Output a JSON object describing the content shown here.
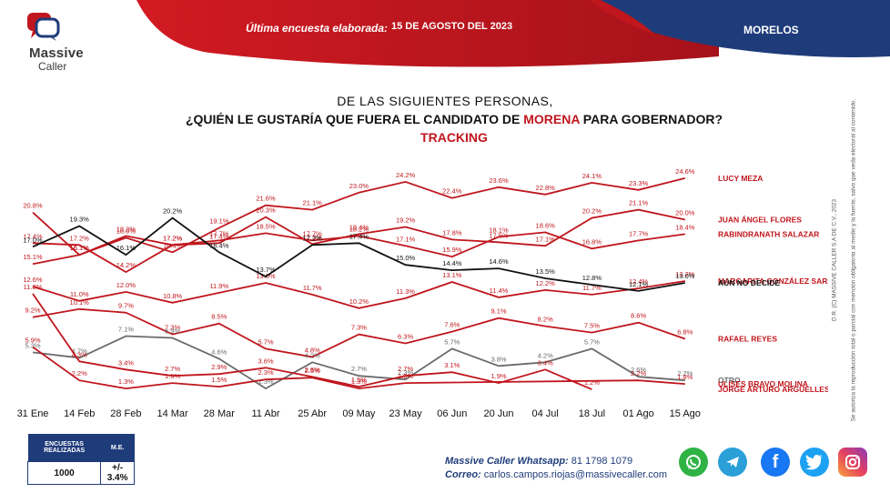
{
  "header": {
    "logo_line1": "Massive",
    "logo_line2": "Caller",
    "label": "Última encuesta elaborada:",
    "date": "15 DE AGOSTO DEL 2023",
    "region": "MORELOS"
  },
  "title": {
    "line1": "DE LAS SIGUIENTES PERSONAS,",
    "line2_a": "¿QUIÉN LE GUSTARÍA QUE FUERA EL CANDIDATO DE ",
    "line2_b": "MORENA",
    "line2_c": " PARA GOBERNADOR?",
    "line3": "TRACKING"
  },
  "colors": {
    "red": "#c0161d",
    "black": "#111111",
    "gray": "#6b6b6b",
    "navy": "#1f3c7a"
  },
  "chart_data": {
    "type": "line",
    "categories": [
      "31 Ene",
      "14 Feb",
      "28 Feb",
      "14 Mar",
      "28 Mar",
      "11 Abr",
      "25 Abr",
      "09 May",
      "23 May",
      "06 Jun",
      "20 Jun",
      "04 Jul",
      "18 Jul",
      "01 Ago",
      "15 Ago"
    ],
    "series": [
      {
        "name": "LUCY MEZA",
        "color": "#c0161d",
        "values": [
          20.8,
          16.1,
          18.0,
          16.4,
          19.1,
          21.6,
          21.1,
          23.0,
          24.2,
          22.4,
          23.6,
          22.8,
          24.1,
          23.3,
          24.6
        ]
      },
      {
        "name": "JUAN ÁNGEL FLORES",
        "color": "#c0161d",
        "values": [
          17.4,
          17.2,
          14.2,
          17.2,
          17.4,
          20.3,
          17.3,
          18.4,
          19.2,
          17.8,
          17.5,
          17.1,
          20.2,
          21.1,
          20.0
        ]
      },
      {
        "name": "RABINDRANATH SALAZAR",
        "color": "#c0161d",
        "values": [
          15.1,
          16.1,
          18.2,
          17.2,
          17.7,
          18.5,
          17.7,
          18.2,
          17.1,
          15.9,
          18.1,
          18.6,
          16.8,
          17.7,
          18.4
        ]
      },
      {
        "name": "MARGARITA GONZÁLEZ SARAVIA",
        "color": "#c0161d",
        "values": [
          12.6,
          11.0,
          12.0,
          10.8,
          11.9,
          13.0,
          11.7,
          10.2,
          11.3,
          13.1,
          11.4,
          12.2,
          11.7,
          12.4,
          13.2
        ]
      },
      {
        "name": "AÚN NO DECIDE",
        "color": "#111111",
        "values": [
          17.0,
          19.3,
          16.1,
          20.2,
          16.4,
          13.7,
          17.2,
          17.4,
          15.0,
          14.4,
          14.6,
          13.5,
          12.8,
          12.1,
          13.0
        ]
      },
      {
        "name": "RAFAEL REYES",
        "color": "#c0161d",
        "values": [
          9.2,
          10.1,
          9.7,
          7.3,
          8.5,
          5.7,
          4.8,
          7.3,
          6.3,
          7.6,
          9.1,
          8.2,
          7.5,
          8.6,
          6.8
        ]
      },
      {
        "name": "OTRO",
        "color": "#6b6b6b",
        "values": [
          5.3,
          4.7,
          7.1,
          6.9,
          4.6,
          1.3,
          4.2,
          2.7,
          2.3,
          5.7,
          3.8,
          4.2,
          5.7,
          2.6,
          2.2
        ]
      },
      {
        "name": "JORGE ARTURO ARGÜELLES VICTORERO",
        "color": "#c0161d",
        "values": [
          11.8,
          4.3,
          3.4,
          2.7,
          2.9,
          3.6,
          2.6,
          1.5,
          2.7,
          3.1,
          1.9,
          3.4,
          1.2,
          null,
          null
        ]
      },
      {
        "name": "ULISES BRAVO MOLINA",
        "color": "#c0161d",
        "values": [
          5.9,
          2.2,
          1.3,
          1.9,
          1.5,
          2.3,
          2.5,
          1.3,
          1.9,
          null,
          null,
          null,
          null,
          2.2,
          1.8
        ]
      }
    ],
    "value_suffix": "%",
    "ylim": [
      0,
      26
    ],
    "grid": false,
    "legend": "right, end of lines"
  },
  "survey": {
    "col1_header": "ENCUESTAS REALIZADAS",
    "col2_header": "M.E.",
    "col1_value": "1000",
    "col2_value": "+/- 3.4%"
  },
  "contact": {
    "whatsapp_label": "Massive Caller Whatsapp:",
    "whatsapp_value": "81 1798 1079",
    "email_label": "Correo:",
    "email_value": "carlos.campos.riojas@massivecaller.com"
  },
  "social": [
    "whatsapp-icon",
    "telegram-icon",
    "facebook-icon",
    "twitter-icon",
    "instagram-icon"
  ],
  "side_notes": {
    "copyright": "D.R. (C) MASSIVE CALLER S.A DE C.V., 2023",
    "disclaimer": "Se autoriza la reproducción total o parcial con mención obligatoria al medio y la fuente, salvo que veda electoral al contenido."
  }
}
